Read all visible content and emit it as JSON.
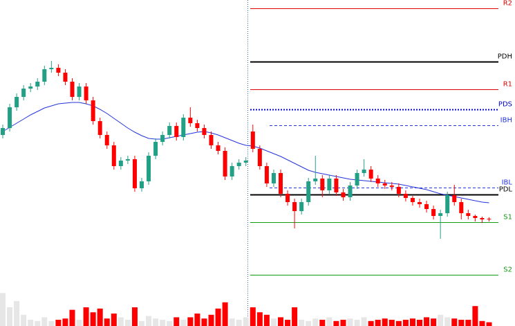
{
  "chart_data": {
    "type": "candlestick",
    "open": [
      276,
      286,
      316,
      331,
      343,
      346,
      353,
      371,
      373,
      366,
      353,
      331,
      346,
      326,
      296,
      276,
      261,
      231,
      239,
      241,
      199,
      209,
      246,
      266,
      276,
      289,
      273,
      301,
      293,
      286,
      276,
      261,
      253,
      216,
      231,
      236,
      281,
      256,
      231,
      206,
      221,
      191,
      179,
      166,
      179,
      209,
      213,
      196,
      213,
      193,
      186,
      203,
      221,
      226,
      213,
      206,
      203,
      201,
      191,
      185,
      179,
      176,
      169,
      159,
      163,
      189,
      179,
      163,
      159,
      156,
      155
    ],
    "high": [
      291,
      321,
      336,
      348,
      351,
      358,
      376,
      383,
      378,
      371,
      358,
      351,
      351,
      331,
      301,
      281,
      266,
      244,
      246,
      246,
      214,
      251,
      271,
      281,
      294,
      294,
      306,
      316,
      298,
      291,
      281,
      266,
      258,
      236,
      241,
      244,
      291,
      261,
      236,
      226,
      226,
      196,
      184,
      184,
      214,
      246,
      218,
      218,
      218,
      198,
      208,
      226,
      241,
      231,
      218,
      211,
      208,
      206,
      196,
      188,
      184,
      181,
      174,
      168,
      194,
      204,
      184,
      168,
      161,
      158,
      157
    ],
    "low": [
      271,
      281,
      311,
      326,
      338,
      341,
      348,
      366,
      361,
      348,
      326,
      326,
      321,
      291,
      271,
      256,
      226,
      226,
      234,
      194,
      194,
      204,
      241,
      261,
      271,
      268,
      268,
      288,
      281,
      271,
      256,
      248,
      211,
      211,
      226,
      231,
      251,
      226,
      201,
      201,
      186,
      174,
      141,
      161,
      174,
      204,
      186,
      191,
      188,
      181,
      181,
      198,
      216,
      208,
      201,
      198,
      196,
      186,
      180,
      174,
      171,
      164,
      154,
      126,
      158,
      174,
      154,
      154,
      151,
      149,
      151
    ],
    "close": [
      286,
      316,
      331,
      343,
      346,
      353,
      371,
      373,
      366,
      353,
      331,
      346,
      326,
      296,
      276,
      261,
      231,
      239,
      241,
      199,
      209,
      246,
      266,
      276,
      289,
      273,
      301,
      293,
      286,
      276,
      261,
      253,
      216,
      231,
      236,
      239,
      256,
      231,
      206,
      221,
      191,
      179,
      166,
      179,
      209,
      213,
      196,
      213,
      193,
      186,
      203,
      221,
      226,
      213,
      206,
      203,
      201,
      191,
      185,
      179,
      176,
      169,
      159,
      163,
      189,
      179,
      163,
      159,
      156,
      154,
      154
    ],
    "volume": [
      53,
      30,
      40,
      18,
      10,
      8,
      14,
      8,
      10,
      12,
      26,
      10,
      30,
      22,
      28,
      12,
      20,
      14,
      10,
      30,
      8,
      16,
      12,
      10,
      8,
      14,
      10,
      14,
      20,
      12,
      18,
      28,
      38,
      12,
      10,
      14,
      30,
      22,
      18,
      12,
      14,
      10,
      30,
      10,
      8,
      12,
      10,
      14,
      8,
      10,
      12,
      10,
      14,
      8,
      10,
      12,
      10,
      8,
      10,
      12,
      10,
      14,
      12,
      18,
      14,
      12,
      10,
      10,
      32,
      8,
      6
    ],
    "ema": [
      281,
      287,
      293,
      299,
      305,
      310,
      315,
      318,
      321,
      322,
      323,
      323,
      321,
      318,
      313,
      307,
      300,
      293,
      286,
      280,
      275,
      271,
      270,
      270,
      272,
      274,
      276,
      278,
      280,
      281,
      279,
      276,
      272,
      268,
      264,
      261,
      260,
      257,
      253,
      249,
      245,
      240,
      235,
      230,
      225,
      222,
      220,
      218,
      216,
      214,
      212,
      211,
      210,
      209,
      208,
      207,
      206,
      205,
      203,
      201,
      199,
      197,
      194,
      191,
      189,
      187,
      185,
      183,
      181,
      179,
      178
    ],
    "ylim": [
      0,
      471
    ],
    "volume_lim": [
      0,
      60
    ],
    "up_color": "#22a085",
    "down_color": "#ff0000",
    "ema_color": "#2233dd",
    "volume_up_color": "#e6e6e6",
    "levels": [
      {
        "label": "R2",
        "value": 459,
        "color": "#e00000",
        "width": 1,
        "dash": "solid"
      },
      {
        "label": "PDH",
        "value": 382,
        "color": "#000000",
        "width": 2,
        "dash": "solid"
      },
      {
        "label": "R1",
        "value": 342,
        "color": "#e00000",
        "width": 1,
        "dash": "solid"
      },
      {
        "label": "PDS",
        "value": 313,
        "color": "#0000cc",
        "width": 2,
        "dash": "dotted"
      },
      {
        "label": "IBH",
        "value": 290,
        "color": "#2233dd",
        "width": 1,
        "dash": "dashed"
      },
      {
        "label": "IBL",
        "value": 200,
        "color": "#2233dd",
        "width": 1,
        "dash": "dashed"
      },
      {
        "label": "PDL",
        "value": 190,
        "color": "#000000",
        "width": 2,
        "dash": "solid"
      },
      {
        "label": "S1",
        "value": 150,
        "color": "#119911",
        "width": 1,
        "dash": "solid"
      },
      {
        "label": "S2",
        "value": 74,
        "color": "#119911",
        "width": 1,
        "dash": "solid"
      }
    ]
  }
}
